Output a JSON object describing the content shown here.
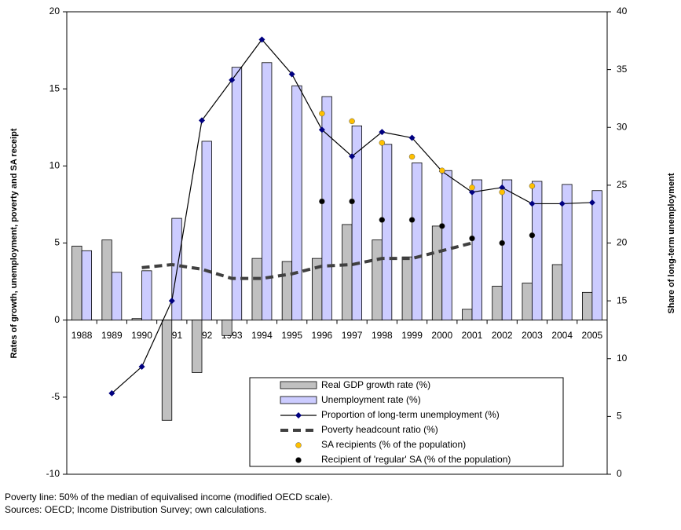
{
  "chart_data": {
    "type": "combo",
    "y_label": "Rates of growth, unemployment, poverty and SA receipt",
    "y2_label": "Share of long-term unemployment",
    "categories": [
      "1988",
      "1989",
      "1990",
      "1991",
      "1992",
      "1993",
      "1994",
      "1995",
      "1996",
      "1997",
      "1998",
      "1999",
      "2000",
      "2001",
      "2002",
      "2003",
      "2004",
      "2005"
    ],
    "ylim": [
      -10,
      20
    ],
    "yticks": [
      -10,
      -5,
      0,
      5,
      10,
      15,
      20
    ],
    "y2lim": [
      0,
      40
    ],
    "y2ticks": [
      0,
      5,
      10,
      15,
      20,
      25,
      30,
      35,
      40
    ],
    "series": [
      {
        "name": "Real GDP growth rate (%)",
        "type": "bar",
        "color": "#c0c0c0",
        "values": [
          4.8,
          5.2,
          0.1,
          -6.5,
          -3.4,
          -1.0,
          4.0,
          3.8,
          4.0,
          6.2,
          5.2,
          4.1,
          6.1,
          0.7,
          2.2,
          2.4,
          3.6,
          1.8
        ]
      },
      {
        "name": "Unemployment rate (%)",
        "type": "bar",
        "color": "#ccccff",
        "values": [
          4.5,
          3.1,
          3.2,
          6.6,
          11.6,
          16.4,
          16.7,
          15.2,
          14.5,
          12.6,
          11.4,
          10.2,
          9.7,
          9.1,
          9.1,
          9.0,
          8.8,
          8.4
        ]
      },
      {
        "name": "Proportion of long-term unemployment (%)",
        "type": "line",
        "color": "#000080",
        "axis": "y2",
        "values": [
          null,
          7.0,
          9.3,
          15.0,
          30.6,
          34.1,
          37.6,
          34.6,
          29.8,
          27.5,
          29.6,
          29.1,
          26.2,
          24.4,
          24.8,
          23.4,
          23.4,
          23.5
        ]
      },
      {
        "name": "Poverty headcount ratio (%)",
        "type": "dashed",
        "color": "#404040",
        "values": [
          null,
          null,
          3.4,
          3.6,
          3.3,
          2.7,
          2.7,
          3.0,
          3.5,
          3.6,
          4.0,
          4.0,
          4.5,
          5.0,
          null,
          null,
          null,
          null
        ]
      },
      {
        "name": "SA recipients (% of the population)",
        "type": "scatter",
        "color": "#ffc000",
        "values": [
          null,
          null,
          null,
          null,
          null,
          null,
          null,
          null,
          13.4,
          12.9,
          11.5,
          10.6,
          9.7,
          8.6,
          8.3,
          8.7,
          null,
          null
        ]
      },
      {
        "name": "Recipient of 'regular' SA (% of the population)",
        "type": "scatter",
        "color": "#000000",
        "values": [
          null,
          null,
          null,
          null,
          null,
          null,
          null,
          null,
          7.7,
          7.7,
          6.5,
          6.5,
          6.1,
          5.3,
          5.0,
          5.5,
          null,
          null
        ]
      }
    ],
    "notes": [
      "Poverty line: 50% of the median of equivalised income (modified OECD scale).",
      "Sources: OECD; Income Distribution Survey; own calculations."
    ]
  }
}
